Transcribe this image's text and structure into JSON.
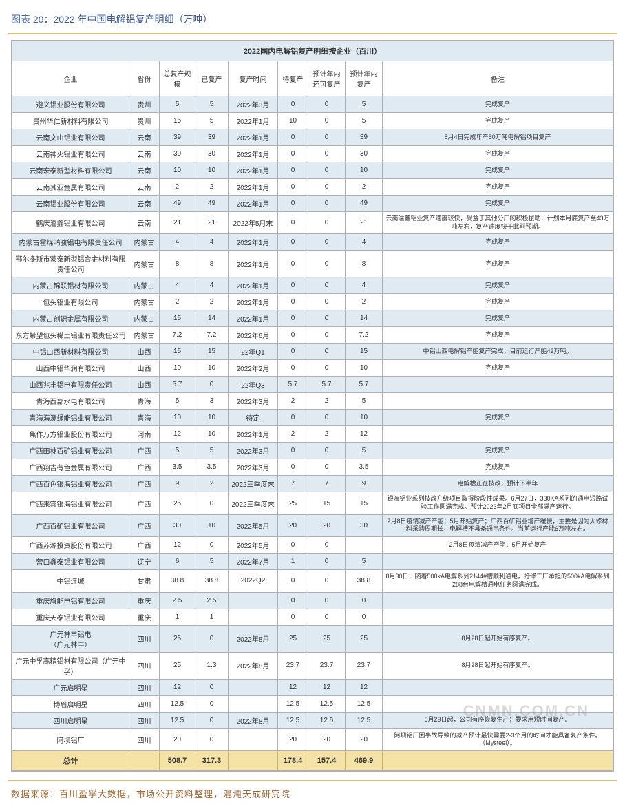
{
  "chart_title": "图表 20：2022 年中国电解铝复产明细（万吨）",
  "table_caption": "2022国内电解铝复产明细按企业（百川）",
  "columns": [
    "企业",
    "省份",
    "总复产规模",
    "已复产",
    "复产时间",
    "待复产",
    "预计年内还可复产",
    "预计年内复产",
    "备注"
  ],
  "col_widths": [
    "170px",
    "44px",
    "52px",
    "48px",
    "72px",
    "44px",
    "54px",
    "54px",
    "auto"
  ],
  "header_bg": "#dfeaf3",
  "alt_row_bg": "#dfeaf3",
  "total_bg": "#f5e2a7",
  "border_color": "#b0b0b0",
  "title_color": "#3a5894",
  "rule_color": "#d9c07a",
  "rows": [
    {
      "c": [
        "遵义铝业股份有限公司",
        "贵州",
        "5",
        "5",
        "2022年3月",
        "0",
        "0",
        "5",
        "完成复产"
      ],
      "alt": true
    },
    {
      "c": [
        "贵州华仁新材料有限公司",
        "贵州",
        "15",
        "5",
        "2022年1月",
        "10",
        "0",
        "5",
        "完成复产"
      ],
      "alt": false
    },
    {
      "c": [
        "云南文山铝业有限公司",
        "云南",
        "39",
        "39",
        "2022年1月",
        "0",
        "0",
        "39",
        "5月4日完成年产50万吨电解铝项目复产"
      ],
      "alt": true
    },
    {
      "c": [
        "云南神火铝业有限公司",
        "云南",
        "30",
        "30",
        "2022年1月",
        "0",
        "0",
        "30",
        "完成复产"
      ],
      "alt": false
    },
    {
      "c": [
        "云南宏泰新型材料有限公司",
        "云南",
        "10",
        "10",
        "2022年1月",
        "0",
        "0",
        "10",
        "完成复产"
      ],
      "alt": true
    },
    {
      "c": [
        "云南其亚金属有限公司",
        "云南",
        "2",
        "2",
        "2022年1月",
        "0",
        "0",
        "2",
        "完成复产"
      ],
      "alt": false
    },
    {
      "c": [
        "云南铝业股份有限公司",
        "云南",
        "49",
        "49",
        "2022年1月",
        "0",
        "0",
        "49",
        "完成复产"
      ],
      "alt": true
    },
    {
      "c": [
        "鹤庆溢鑫铝业有限公司",
        "云南",
        "21",
        "21",
        "2022年5月末",
        "0",
        "0",
        "21",
        "云南溢鑫铝业复产速度较快，受益于其他分厂的积极援助，计划本月底复产至43万吨左右，复产速度快于此前预期。"
      ],
      "alt": false
    },
    {
      "c": [
        "内蒙古霍煤鸿骏铝电有限责任公司",
        "内蒙古",
        "4",
        "4",
        "2022年1月",
        "0",
        "0",
        "4",
        "完成复产"
      ],
      "alt": true
    },
    {
      "c": [
        "鄂尔多斯市蒙泰新型铝合金材料有限责任公司",
        "内蒙古",
        "8",
        "8",
        "2022年1月",
        "0",
        "0",
        "8",
        "完成复产"
      ],
      "alt": false
    },
    {
      "c": [
        "内蒙古锦联铝材有限公司",
        "内蒙古",
        "4",
        "4",
        "2022年1月",
        "0",
        "0",
        "4",
        "完成复产"
      ],
      "alt": true
    },
    {
      "c": [
        "包头铝业有限公司",
        "内蒙古",
        "2",
        "2",
        "2022年1月",
        "0",
        "0",
        "2",
        "完成复产"
      ],
      "alt": false
    },
    {
      "c": [
        "内蒙古创源金属有限公司",
        "内蒙古",
        "15",
        "14",
        "2022年1月",
        "0",
        "0",
        "14",
        "完成复产"
      ],
      "alt": true
    },
    {
      "c": [
        "东方希望包头稀土铝业有限责任公司",
        "内蒙古",
        "7.2",
        "7.2",
        "2022年6月",
        "0",
        "0",
        "7.2",
        "完成复产"
      ],
      "alt": false
    },
    {
      "c": [
        "中铝山西新材料有限公司",
        "山西",
        "15",
        "15",
        "22年Q1",
        "0",
        "0",
        "15",
        "中铝山西电解铝产能复产完成，目前运行产能42万吨。"
      ],
      "alt": true
    },
    {
      "c": [
        "山西中铝华润有限公司",
        "山西",
        "10",
        "10",
        "2022年2月",
        "0",
        "0",
        "10",
        "完成复产"
      ],
      "alt": false
    },
    {
      "c": [
        "山西兆丰铝电有限责任公司",
        "山西",
        "5.7",
        "0",
        "22年Q3",
        "5.7",
        "5.7",
        "5.7",
        ""
      ],
      "alt": true
    },
    {
      "c": [
        "青海西部水电有限公司",
        "青海",
        "5",
        "3",
        "2022年3月",
        "2",
        "2",
        "5",
        ""
      ],
      "alt": false
    },
    {
      "c": [
        "青海海源绿能铝业有限公司",
        "青海",
        "10",
        "10",
        "待定",
        "0",
        "0",
        "10",
        "完成复产"
      ],
      "alt": true
    },
    {
      "c": [
        "焦作万方铝业股份有限公司",
        "河南",
        "12",
        "10",
        "2022年1月",
        "2",
        "2",
        "12",
        ""
      ],
      "alt": false
    },
    {
      "c": [
        "广西田林百矿铝业有限公司",
        "广西",
        "5",
        "5",
        "2022年3月",
        "0",
        "0",
        "5",
        "完成复产"
      ],
      "alt": true
    },
    {
      "c": [
        "广西翔吉有色金属有限公司",
        "广西",
        "3.5",
        "3.5",
        "2022年3月",
        "0",
        "0",
        "3.5",
        "完成复产"
      ],
      "alt": false
    },
    {
      "c": [
        "广西百色银海铝业有限公司",
        "广西",
        "9",
        "2",
        "2022三季度末",
        "7",
        "7",
        "9",
        "电解槽正在技改，预计下半年"
      ],
      "alt": true
    },
    {
      "c": [
        "广西来宾银海铝业有限公司",
        "广西",
        "25",
        "0",
        "2022三季度末",
        "25",
        "15",
        "15",
        "银海铝业系列技改升级项目取得阶段性成果。6月27日，330KA系列的通电短路试验工作圆满完成。预计2023年2月底项目全部满产运行。"
      ],
      "alt": false
    },
    {
      "c": [
        "广西百矿铝业有限公司",
        "广西",
        "30",
        "10",
        "2022年5月",
        "20",
        "20",
        "30",
        "2月8日疫情减产产能；5月开始复产；广西百矿铝业增产缓慢，主要是因为大修材料采购周期长，电解槽不具备通电条件。当前运行产能6万吨左右。"
      ],
      "alt": true
    },
    {
      "c": [
        "广西苏源投资股份有限公司",
        "广西",
        "12",
        "0",
        "2022年5月",
        "0",
        "0",
        "",
        "2月8日疫清减产产能；5月开始复产"
      ],
      "alt": false
    },
    {
      "c": [
        "营口鑫泰铝业有限公司",
        "辽宁",
        "6",
        "5",
        "2022年7月",
        "1",
        "0",
        "5",
        ""
      ],
      "alt": true
    },
    {
      "c": [
        "中铝连城",
        "甘肃",
        "38.8",
        "38.8",
        "2022Q2",
        "0",
        "0",
        "38.8",
        "8月30日，随着500kA电解系列2144#槽顺利通电，抢修二厂承担的500kA电解系列288台电解槽通电任务圆满完成。"
      ],
      "alt": false
    },
    {
      "c": [
        "重庆旗能电铝有限公司",
        "重庆",
        "2.5",
        "2.5",
        "",
        "0",
        "0",
        "0",
        ""
      ],
      "alt": true
    },
    {
      "c": [
        "重庆天泰铝业有限公司",
        "重庆",
        "1",
        "1",
        "",
        "0",
        "0",
        "0",
        ""
      ],
      "alt": false
    },
    {
      "c": [
        "广元林丰铝电\n（广元林丰）",
        "四川",
        "25",
        "0",
        "2022年8月",
        "25",
        "25",
        "25",
        "8月28日起开始有序复产。"
      ],
      "alt": true
    },
    {
      "c": [
        "广元中孚高精铝材有限公司（广元中孚）",
        "四川",
        "25",
        "1.3",
        "2022年8月",
        "23.7",
        "23.7",
        "23.7",
        "8月28日起开始有序复产。"
      ],
      "alt": false
    },
    {
      "c": [
        "广元启明星",
        "四川",
        "12",
        "0",
        "",
        "12",
        "12",
        "12",
        ""
      ],
      "alt": true
    },
    {
      "c": [
        "博眉启明星",
        "四川",
        "12.5",
        "0",
        "",
        "12.5",
        "12.5",
        "12.5",
        ""
      ],
      "alt": false
    },
    {
      "c": [
        "四川启明星",
        "四川",
        "12.5",
        "0",
        "2022年8月",
        "12.5",
        "12.5",
        "12.5",
        "8月29日起，公司有序恢复生产；要求用短时间复产。"
      ],
      "alt": true
    },
    {
      "c": [
        "阿坝铝厂",
        "四川",
        "20",
        "0",
        "",
        "20",
        "20",
        "20",
        "阿坝铝厂因事故导致的减产预计最快需要2-3个月的时间才能具备复产条件。（Mysteel）。"
      ],
      "alt": false
    }
  ],
  "totals": {
    "label": "总计",
    "c": [
      "",
      "508.7",
      "317.3",
      "",
      "178.4",
      "157.4",
      "469.9",
      ""
    ]
  },
  "source": "数据来源：百川盈孚大数据，市场公开资料整理，混沌天成研究院",
  "watermark": "CNMN.COM.CN"
}
